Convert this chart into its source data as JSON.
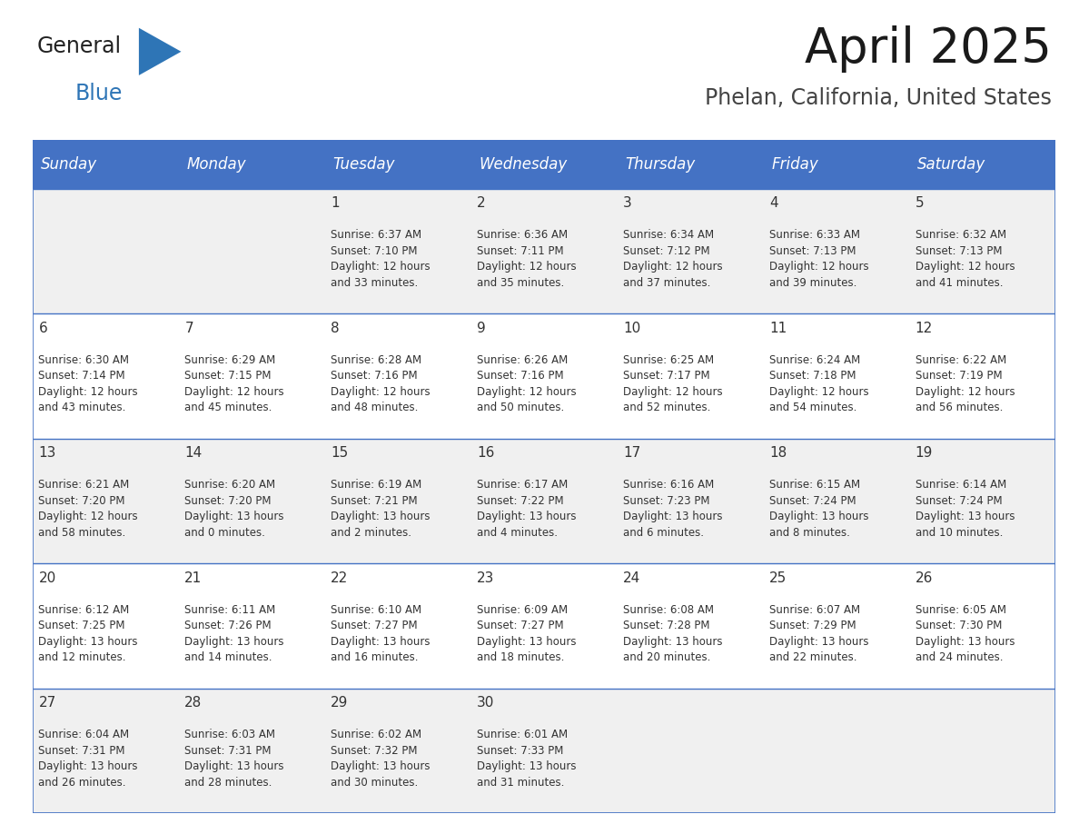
{
  "title": "April 2025",
  "subtitle": "Phelan, California, United States",
  "header_bg_color": "#4472C4",
  "header_text_color": "#FFFFFF",
  "row_bg_even": "#F0F0F0",
  "row_bg_odd": "#FFFFFF",
  "day_headers": [
    "Sunday",
    "Monday",
    "Tuesday",
    "Wednesday",
    "Thursday",
    "Friday",
    "Saturday"
  ],
  "weeks": [
    [
      {
        "day": "",
        "info": ""
      },
      {
        "day": "",
        "info": ""
      },
      {
        "day": "1",
        "info": "Sunrise: 6:37 AM\nSunset: 7:10 PM\nDaylight: 12 hours\nand 33 minutes."
      },
      {
        "day": "2",
        "info": "Sunrise: 6:36 AM\nSunset: 7:11 PM\nDaylight: 12 hours\nand 35 minutes."
      },
      {
        "day": "3",
        "info": "Sunrise: 6:34 AM\nSunset: 7:12 PM\nDaylight: 12 hours\nand 37 minutes."
      },
      {
        "day": "4",
        "info": "Sunrise: 6:33 AM\nSunset: 7:13 PM\nDaylight: 12 hours\nand 39 minutes."
      },
      {
        "day": "5",
        "info": "Sunrise: 6:32 AM\nSunset: 7:13 PM\nDaylight: 12 hours\nand 41 minutes."
      }
    ],
    [
      {
        "day": "6",
        "info": "Sunrise: 6:30 AM\nSunset: 7:14 PM\nDaylight: 12 hours\nand 43 minutes."
      },
      {
        "day": "7",
        "info": "Sunrise: 6:29 AM\nSunset: 7:15 PM\nDaylight: 12 hours\nand 45 minutes."
      },
      {
        "day": "8",
        "info": "Sunrise: 6:28 AM\nSunset: 7:16 PM\nDaylight: 12 hours\nand 48 minutes."
      },
      {
        "day": "9",
        "info": "Sunrise: 6:26 AM\nSunset: 7:16 PM\nDaylight: 12 hours\nand 50 minutes."
      },
      {
        "day": "10",
        "info": "Sunrise: 6:25 AM\nSunset: 7:17 PM\nDaylight: 12 hours\nand 52 minutes."
      },
      {
        "day": "11",
        "info": "Sunrise: 6:24 AM\nSunset: 7:18 PM\nDaylight: 12 hours\nand 54 minutes."
      },
      {
        "day": "12",
        "info": "Sunrise: 6:22 AM\nSunset: 7:19 PM\nDaylight: 12 hours\nand 56 minutes."
      }
    ],
    [
      {
        "day": "13",
        "info": "Sunrise: 6:21 AM\nSunset: 7:20 PM\nDaylight: 12 hours\nand 58 minutes."
      },
      {
        "day": "14",
        "info": "Sunrise: 6:20 AM\nSunset: 7:20 PM\nDaylight: 13 hours\nand 0 minutes."
      },
      {
        "day": "15",
        "info": "Sunrise: 6:19 AM\nSunset: 7:21 PM\nDaylight: 13 hours\nand 2 minutes."
      },
      {
        "day": "16",
        "info": "Sunrise: 6:17 AM\nSunset: 7:22 PM\nDaylight: 13 hours\nand 4 minutes."
      },
      {
        "day": "17",
        "info": "Sunrise: 6:16 AM\nSunset: 7:23 PM\nDaylight: 13 hours\nand 6 minutes."
      },
      {
        "day": "18",
        "info": "Sunrise: 6:15 AM\nSunset: 7:24 PM\nDaylight: 13 hours\nand 8 minutes."
      },
      {
        "day": "19",
        "info": "Sunrise: 6:14 AM\nSunset: 7:24 PM\nDaylight: 13 hours\nand 10 minutes."
      }
    ],
    [
      {
        "day": "20",
        "info": "Sunrise: 6:12 AM\nSunset: 7:25 PM\nDaylight: 13 hours\nand 12 minutes."
      },
      {
        "day": "21",
        "info": "Sunrise: 6:11 AM\nSunset: 7:26 PM\nDaylight: 13 hours\nand 14 minutes."
      },
      {
        "day": "22",
        "info": "Sunrise: 6:10 AM\nSunset: 7:27 PM\nDaylight: 13 hours\nand 16 minutes."
      },
      {
        "day": "23",
        "info": "Sunrise: 6:09 AM\nSunset: 7:27 PM\nDaylight: 13 hours\nand 18 minutes."
      },
      {
        "day": "24",
        "info": "Sunrise: 6:08 AM\nSunset: 7:28 PM\nDaylight: 13 hours\nand 20 minutes."
      },
      {
        "day": "25",
        "info": "Sunrise: 6:07 AM\nSunset: 7:29 PM\nDaylight: 13 hours\nand 22 minutes."
      },
      {
        "day": "26",
        "info": "Sunrise: 6:05 AM\nSunset: 7:30 PM\nDaylight: 13 hours\nand 24 minutes."
      }
    ],
    [
      {
        "day": "27",
        "info": "Sunrise: 6:04 AM\nSunset: 7:31 PM\nDaylight: 13 hours\nand 26 minutes."
      },
      {
        "day": "28",
        "info": "Sunrise: 6:03 AM\nSunset: 7:31 PM\nDaylight: 13 hours\nand 28 minutes."
      },
      {
        "day": "29",
        "info": "Sunrise: 6:02 AM\nSunset: 7:32 PM\nDaylight: 13 hours\nand 30 minutes."
      },
      {
        "day": "30",
        "info": "Sunrise: 6:01 AM\nSunset: 7:33 PM\nDaylight: 13 hours\nand 31 minutes."
      },
      {
        "day": "",
        "info": ""
      },
      {
        "day": "",
        "info": ""
      },
      {
        "day": "",
        "info": ""
      }
    ]
  ],
  "title_fontsize": 38,
  "subtitle_fontsize": 17,
  "day_header_fontsize": 12,
  "day_num_fontsize": 11,
  "info_fontsize": 8.5,
  "header_bg_color2": "#4472C4",
  "divider_color": "#4472C4",
  "text_color": "#333333",
  "logo_general_color": "#222222",
  "logo_blue_color": "#2E75B6",
  "logo_triangle_color": "#2E75B6"
}
